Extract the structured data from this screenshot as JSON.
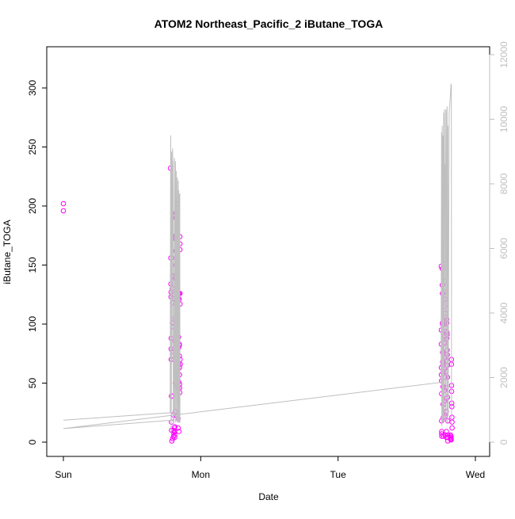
{
  "chart_data": {
    "type": "scatter",
    "title": "ATOM2 Northeast_Pacific_2 iButane_TOGA",
    "xlabel": "Date",
    "ylabel": "iButane_TOGA",
    "x_axis": {
      "type": "date",
      "range": [
        "2017-10-01T00:00",
        "2017-10-04T00:00"
      ],
      "ticks": [
        {
          "value": "2017-10-01T00:00",
          "label": "Sun"
        },
        {
          "value": "2017-10-02T00:00",
          "label": "Mon"
        },
        {
          "value": "2017-10-03T00:00",
          "label": "Tue"
        },
        {
          "value": "2017-10-04T00:00",
          "label": "Wed"
        }
      ]
    },
    "y_axis": {
      "range": [
        0,
        325
      ],
      "ticks": [
        0,
        50,
        100,
        150,
        200,
        250,
        300
      ]
    },
    "y2_axis": {
      "range": [
        0,
        12000
      ],
      "ticks": [
        0,
        2000,
        4000,
        6000,
        8000,
        10000,
        12000
      ]
    },
    "grid": false,
    "colors": {
      "points": "#ff00ff",
      "line": "#bfbfbf"
    },
    "series": [
      {
        "axis": "left",
        "style": "open-circle",
        "points": [
          [
            "2017-10-01T00:00",
            202
          ],
          [
            "2017-10-01T00:00",
            196
          ],
          [
            "2017-10-01T18:42",
            232
          ],
          [
            "2017-10-01T18:47",
            156
          ],
          [
            "2017-10-01T18:47",
            134
          ],
          [
            "2017-10-01T18:49",
            127
          ],
          [
            "2017-10-01T18:49",
            123
          ],
          [
            "2017-10-01T18:50",
            88
          ],
          [
            "2017-10-01T18:50",
            79
          ],
          [
            "2017-10-01T18:51",
            70
          ],
          [
            "2017-10-01T18:52",
            39
          ],
          [
            "2017-10-01T18:53",
            17
          ],
          [
            "2017-10-01T18:54",
            10
          ],
          [
            "2017-10-01T18:57",
            1
          ],
          [
            "2017-10-01T19:01",
            130
          ],
          [
            "2017-10-01T19:04",
            141
          ],
          [
            "2017-10-01T19:03",
            118
          ],
          [
            "2017-10-01T19:02",
            101
          ],
          [
            "2017-10-01T19:02",
            77
          ],
          [
            "2017-10-01T19:03",
            39
          ],
          [
            "2017-10-01T19:06",
            3
          ],
          [
            "2017-10-01T19:08",
            140
          ],
          [
            "2017-10-01T19:09",
            125
          ],
          [
            "2017-10-01T19:10",
            98
          ],
          [
            "2017-10-01T19:12",
            23
          ],
          [
            "2017-10-01T19:14",
            10
          ],
          [
            "2017-10-01T19:15",
            5
          ],
          [
            "2017-10-01T19:17",
            8
          ],
          [
            "2017-10-01T19:25",
            12
          ],
          [
            "2017-10-01T19:26",
            9
          ],
          [
            "2017-10-01T19:27",
            6
          ],
          [
            "2017-10-01T19:27",
            4
          ],
          [
            "2017-10-01T19:28",
            13
          ],
          [
            "2017-10-01T19:30",
            139
          ],
          [
            "2017-10-01T19:31",
            105
          ],
          [
            "2017-10-01T19:31",
            85
          ],
          [
            "2017-10-01T19:32",
            50
          ],
          [
            "2017-10-01T19:32",
            26
          ],
          [
            "2017-10-01T19:36",
            194
          ],
          [
            "2017-10-01T19:36",
            190
          ],
          [
            "2017-10-01T19:37",
            175
          ],
          [
            "2017-10-01T19:37",
            172
          ],
          [
            "2017-10-01T19:38",
            162
          ],
          [
            "2017-10-01T19:38",
            156
          ],
          [
            "2017-10-01T19:39",
            150
          ],
          [
            "2017-10-01T19:40",
            138
          ],
          [
            "2017-10-01T19:41",
            120
          ],
          [
            "2017-10-01T19:42",
            117
          ],
          [
            "2017-10-01T19:43",
            94
          ],
          [
            "2017-10-01T19:44",
            75
          ],
          [
            "2017-10-01T19:45",
            62
          ],
          [
            "2017-10-01T19:45",
            57
          ],
          [
            "2017-10-01T19:46",
            48
          ],
          [
            "2017-10-01T19:48",
            22
          ],
          [
            "2017-10-01T19:54",
            202
          ],
          [
            "2017-10-01T19:55",
            181
          ],
          [
            "2017-10-01T19:55",
            146
          ],
          [
            "2017-10-01T19:56",
            141
          ],
          [
            "2017-10-01T19:57",
            137
          ],
          [
            "2017-10-01T19:57",
            133
          ],
          [
            "2017-10-01T19:58",
            130
          ],
          [
            "2017-10-01T19:58",
            122
          ],
          [
            "2017-10-01T19:59",
            118
          ],
          [
            "2017-10-01T20:00",
            84
          ],
          [
            "2017-10-01T20:00",
            70
          ],
          [
            "2017-10-01T20:01",
            62
          ],
          [
            "2017-10-01T20:02",
            46
          ],
          [
            "2017-10-01T20:02",
            20
          ],
          [
            "2017-10-01T20:03",
            12
          ],
          [
            "2017-10-01T20:06",
            126
          ],
          [
            "2017-10-01T20:07",
            122
          ],
          [
            "2017-10-01T20:08",
            89
          ],
          [
            "2017-10-01T20:08",
            80
          ],
          [
            "2017-10-01T20:09",
            66
          ],
          [
            "2017-10-01T20:10",
            51
          ],
          [
            "2017-10-01T20:11",
            9
          ],
          [
            "2017-10-01T20:13",
            126
          ],
          [
            "2017-10-01T20:14",
            121
          ],
          [
            "2017-10-01T20:15",
            83
          ],
          [
            "2017-10-01T20:16",
            82
          ],
          [
            "2017-10-01T20:16",
            73
          ],
          [
            "2017-10-01T20:17",
            63
          ],
          [
            "2017-10-01T20:17",
            57
          ],
          [
            "2017-10-01T20:18",
            49
          ],
          [
            "2017-10-01T20:19",
            46
          ],
          [
            "2017-10-01T20:20",
            42
          ],
          [
            "2017-10-01T20:21",
            174
          ],
          [
            "2017-10-01T20:22",
            168
          ],
          [
            "2017-10-01T20:22",
            163
          ],
          [
            "2017-10-01T20:23",
            126
          ],
          [
            "2017-10-01T20:23",
            117
          ],
          [
            "2017-10-01T20:24",
            70
          ],
          [
            "2017-10-01T20:25",
            66
          ],
          [
            "2017-10-03T18:02",
            149
          ],
          [
            "2017-10-03T18:03",
            95
          ],
          [
            "2017-10-03T18:03",
            83
          ],
          [
            "2017-10-03T18:04",
            63
          ],
          [
            "2017-10-03T18:04",
            57
          ],
          [
            "2017-10-03T18:05",
            52
          ],
          [
            "2017-10-03T18:06",
            41
          ],
          [
            "2017-10-03T18:06",
            18
          ],
          [
            "2017-10-03T18:07",
            9
          ],
          [
            "2017-10-03T18:07",
            7
          ],
          [
            "2017-10-03T18:08",
            5
          ],
          [
            "2017-10-03T18:12",
            147
          ],
          [
            "2017-10-03T18:13",
            133
          ],
          [
            "2017-10-03T18:14",
            126
          ],
          [
            "2017-10-03T18:15",
            101
          ],
          [
            "2017-10-03T18:16",
            100
          ],
          [
            "2017-10-03T18:17",
            76
          ],
          [
            "2017-10-03T18:18",
            68
          ],
          [
            "2017-10-03T18:19",
            65
          ],
          [
            "2017-10-03T18:20",
            59
          ],
          [
            "2017-10-03T18:21",
            47
          ],
          [
            "2017-10-03T18:22",
            32
          ],
          [
            "2017-10-03T18:24",
            21
          ],
          [
            "2017-10-03T18:25",
            5
          ],
          [
            "2017-10-03T18:30",
            151
          ],
          [
            "2017-10-03T18:31",
            136
          ],
          [
            "2017-10-03T18:32",
            127
          ],
          [
            "2017-10-03T18:33",
            121
          ],
          [
            "2017-10-03T18:34",
            115
          ],
          [
            "2017-10-03T18:35",
            100
          ],
          [
            "2017-10-03T18:35",
            84
          ],
          [
            "2017-10-03T18:36",
            71
          ],
          [
            "2017-10-03T18:37",
            62
          ],
          [
            "2017-10-03T18:38",
            55
          ],
          [
            "2017-10-03T18:39",
            44
          ],
          [
            "2017-10-03T18:40",
            35
          ],
          [
            "2017-10-03T18:42",
            22
          ],
          [
            "2017-10-03T18:44",
            6
          ],
          [
            "2017-10-03T18:46",
            121
          ],
          [
            "2017-10-03T18:47",
            109
          ],
          [
            "2017-10-03T18:48",
            103
          ],
          [
            "2017-10-03T18:49",
            97
          ],
          [
            "2017-10-03T18:50",
            90
          ],
          [
            "2017-10-03T18:50",
            84
          ],
          [
            "2017-10-03T18:51",
            72
          ],
          [
            "2017-10-03T18:52",
            60
          ],
          [
            "2017-10-03T18:53",
            46
          ],
          [
            "2017-10-03T18:54",
            37
          ],
          [
            "2017-10-03T18:55",
            26
          ],
          [
            "2017-10-03T18:56",
            9
          ],
          [
            "2017-10-03T18:57",
            4
          ],
          [
            "2017-10-03T19:00",
            104
          ],
          [
            "2017-10-03T19:01",
            101
          ],
          [
            "2017-10-03T19:02",
            93
          ],
          [
            "2017-10-03T19:02",
            88
          ],
          [
            "2017-10-03T19:03",
            91
          ],
          [
            "2017-10-03T19:04",
            78
          ],
          [
            "2017-10-03T19:05",
            74
          ],
          [
            "2017-10-03T19:06",
            65
          ],
          [
            "2017-10-03T19:07",
            55
          ],
          [
            "2017-10-03T19:08",
            38
          ],
          [
            "2017-10-03T19:09",
            18
          ],
          [
            "2017-10-03T19:10",
            4
          ],
          [
            "2017-10-03T19:11",
            1
          ],
          [
            "2017-10-03T19:12",
            6
          ],
          [
            "2017-10-03T19:40",
            6
          ],
          [
            "2017-10-03T19:41",
            4
          ],
          [
            "2017-10-03T19:42",
            3
          ],
          [
            "2017-10-03T19:43",
            2
          ],
          [
            "2017-10-03T19:44",
            5
          ],
          [
            "2017-10-03T19:46",
            3
          ],
          [
            "2017-10-03T19:47",
            2
          ],
          [
            "2017-10-03T19:48",
            70
          ],
          [
            "2017-10-03T19:49",
            66
          ],
          [
            "2017-10-03T19:50",
            48
          ],
          [
            "2017-10-03T19:51",
            43
          ],
          [
            "2017-10-03T19:52",
            33
          ],
          [
            "2017-10-03T19:53",
            30
          ],
          [
            "2017-10-03T19:54",
            21
          ],
          [
            "2017-10-03T19:55",
            17
          ],
          [
            "2017-10-03T19:56",
            12
          ]
        ]
      },
      {
        "axis": "right",
        "style": "line",
        "points": [
          [
            "2017-10-01T00:00",
            680
          ],
          [
            "2017-10-01T18:40",
            910
          ],
          [
            "2017-10-01T18:45",
            9500
          ],
          [
            "2017-10-01T18:48",
            6200
          ],
          [
            "2017-10-01T18:50",
            300
          ],
          [
            "2017-10-01T18:52",
            1500
          ],
          [
            "2017-10-01T18:55",
            9000
          ],
          [
            "2017-10-01T18:58",
            2500
          ],
          [
            "2017-10-01T19:05",
            9100
          ],
          [
            "2017-10-01T19:07",
            8700
          ],
          [
            "2017-10-01T19:10",
            8700
          ],
          [
            "2017-10-01T19:12",
            500
          ],
          [
            "2017-10-01T19:18",
            700
          ],
          [
            "2017-10-01T19:25",
            8800
          ],
          [
            "2017-10-01T19:28",
            800
          ],
          [
            "2017-10-01T19:35",
            8700
          ],
          [
            "2017-10-01T19:38",
            600
          ],
          [
            "2017-10-01T19:45",
            8400
          ],
          [
            "2017-10-01T19:48",
            700
          ],
          [
            "2017-10-01T19:55",
            8200
          ],
          [
            "2017-10-01T19:58",
            600
          ],
          [
            "2017-10-01T20:05",
            8100
          ],
          [
            "2017-10-01T20:07",
            600
          ],
          [
            "2017-10-01T20:10",
            7800
          ],
          [
            "2017-10-01T20:12",
            700
          ],
          [
            "2017-10-01T20:15",
            7700
          ],
          [
            "2017-10-01T20:18",
            600
          ],
          [
            "2017-10-01T20:20",
            7700
          ],
          [
            "2017-10-01T20:22",
            600
          ],
          [
            "2017-10-01T20:23",
            700
          ],
          [
            "2017-10-01T00:00",
            420
          ],
          [
            "2017-10-03T18:00",
            1850
          ],
          [
            "2017-10-03T18:05",
            9600
          ],
          [
            "2017-10-03T18:08",
            500
          ],
          [
            "2017-10-03T18:12",
            9800
          ],
          [
            "2017-10-03T18:15",
            600
          ],
          [
            "2017-10-03T18:20",
            9500
          ],
          [
            "2017-10-03T18:23",
            600
          ],
          [
            "2017-10-03T18:28",
            10200
          ],
          [
            "2017-10-03T18:31",
            700
          ],
          [
            "2017-10-03T18:35",
            10300
          ],
          [
            "2017-10-03T18:38",
            8100
          ],
          [
            "2017-10-03T18:42",
            8600
          ],
          [
            "2017-10-03T18:45",
            700
          ],
          [
            "2017-10-03T18:50",
            10300
          ],
          [
            "2017-10-03T18:53",
            600
          ],
          [
            "2017-10-03T19:00",
            10200
          ],
          [
            "2017-10-03T19:03",
            10400
          ],
          [
            "2017-10-03T19:07",
            600
          ],
          [
            "2017-10-03T19:12",
            9800
          ],
          [
            "2017-10-03T19:15",
            800
          ],
          [
            "2017-10-03T19:25",
            10200
          ],
          [
            "2017-10-03T19:35",
            10600
          ],
          [
            "2017-10-03T19:45",
            11100
          ],
          [
            "2017-10-03T19:48",
            11050
          ],
          [
            "2017-10-03T19:50",
            500
          ]
        ]
      }
    ]
  }
}
